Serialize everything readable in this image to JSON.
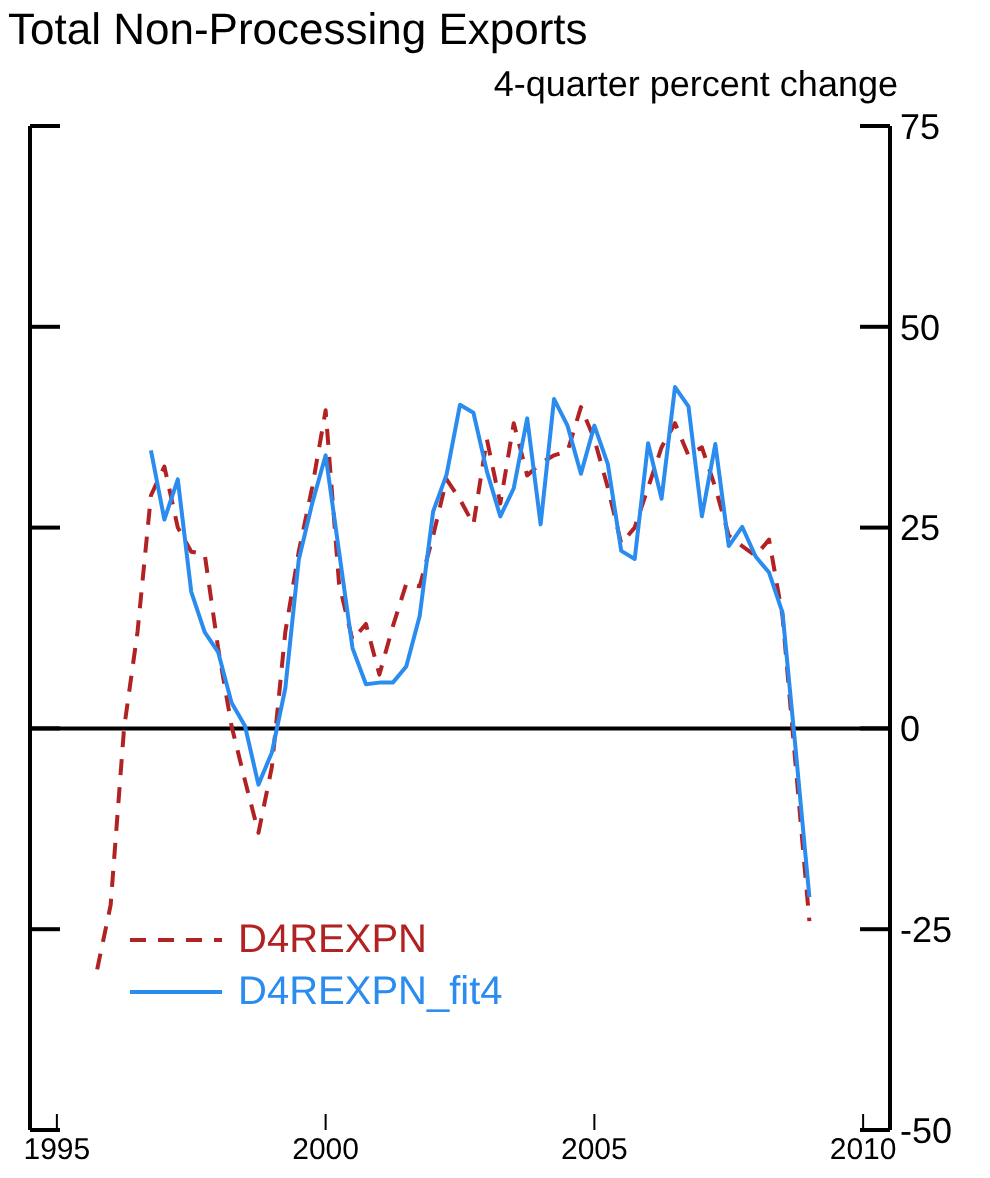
{
  "chart_data": {
    "type": "line",
    "title": "Total Non-Processing Exports",
    "subtitle": "4-quarter percent change",
    "xlim": [
      1994.5,
      2010.5
    ],
    "xticks": [
      1995,
      2000,
      2005,
      2010
    ],
    "ylim": [
      -50,
      75
    ],
    "yticks": [
      -50,
      -25,
      0,
      25,
      50,
      75
    ],
    "legend": "bottom left",
    "marker": "none",
    "ref_lines": [
      {
        "axis": "y",
        "value": 0,
        "color": "#000000",
        "line_style": "solid"
      }
    ],
    "series": [
      {
        "name": "D4REXPN",
        "color": "#b22222",
        "line_style": "dashed",
        "x": [
          1995.75,
          1996,
          1996.25,
          1996.5,
          1996.75,
          1997,
          1997.25,
          1997.5,
          1997.75,
          1998,
          1998.25,
          1998.5,
          1998.75,
          1999,
          1999.25,
          1999.5,
          1999.75,
          2000,
          2000.25,
          2000.5,
          2000.75,
          2001,
          2001.25,
          2001.5,
          2001.75,
          2002,
          2002.25,
          2002.5,
          2002.75,
          2003,
          2003.25,
          2003.5,
          2003.75,
          2004,
          2004.25,
          2004.5,
          2004.75,
          2005,
          2005.25,
          2005.5,
          2005.75,
          2006,
          2006.25,
          2006.5,
          2006.75,
          2007,
          2007.25,
          2007.5,
          2007.75,
          2008,
          2008.25,
          2008.5,
          2008.75,
          2009
        ],
        "values": [
          -30,
          -22,
          0,
          12,
          29,
          32.6,
          25,
          22,
          21.7,
          10,
          0.3,
          -6.5,
          -13,
          -4.8,
          12,
          22,
          30,
          39.6,
          18,
          11,
          13,
          6.7,
          12.7,
          18,
          17.7,
          24,
          31,
          28.5,
          25.4,
          36,
          28,
          38,
          31.5,
          33,
          34,
          34.5,
          40,
          36,
          30,
          23,
          25,
          30,
          35,
          38,
          34,
          35,
          30,
          24,
          22.7,
          21.5,
          23.5,
          14,
          -5,
          -24
        ]
      },
      {
        "name": "D4REXPN_fit4",
        "color": "#2b8cf0",
        "line_style": "solid",
        "x": [
          1996.75,
          1997,
          1997.25,
          1997.5,
          1997.75,
          1998,
          1998.25,
          1998.5,
          1998.75,
          1999,
          1999.25,
          1999.5,
          1999.75,
          2000,
          2000.25,
          2000.5,
          2000.75,
          2001,
          2001.25,
          2001.5,
          2001.75,
          2002,
          2002.25,
          2002.5,
          2002.75,
          2003,
          2003.25,
          2003.5,
          2003.75,
          2004,
          2004.25,
          2004.5,
          2004.75,
          2005,
          2005.25,
          2005.5,
          2005.75,
          2006,
          2006.25,
          2006.5,
          2006.75,
          2007,
          2007.25,
          2007.5,
          2007.75,
          2008,
          2008.25,
          2008.5,
          2008.75,
          2009
        ],
        "values": [
          34.6,
          26,
          31,
          17,
          12,
          9.5,
          3.2,
          0.3,
          -7,
          -3,
          5,
          21,
          28,
          34,
          22,
          10,
          5.5,
          5.7,
          5.7,
          7.7,
          14,
          27,
          31.6,
          40.3,
          39.3,
          32,
          26.4,
          29.9,
          38.6,
          25.4,
          41,
          37.7,
          31.7,
          37.7,
          32.9,
          22.1,
          21.1,
          35.5,
          28.6,
          42.5,
          40.1,
          26.4,
          35.4,
          22.7,
          25.1,
          21.4,
          19.4,
          14.4,
          -3,
          -21
        ]
      }
    ]
  }
}
